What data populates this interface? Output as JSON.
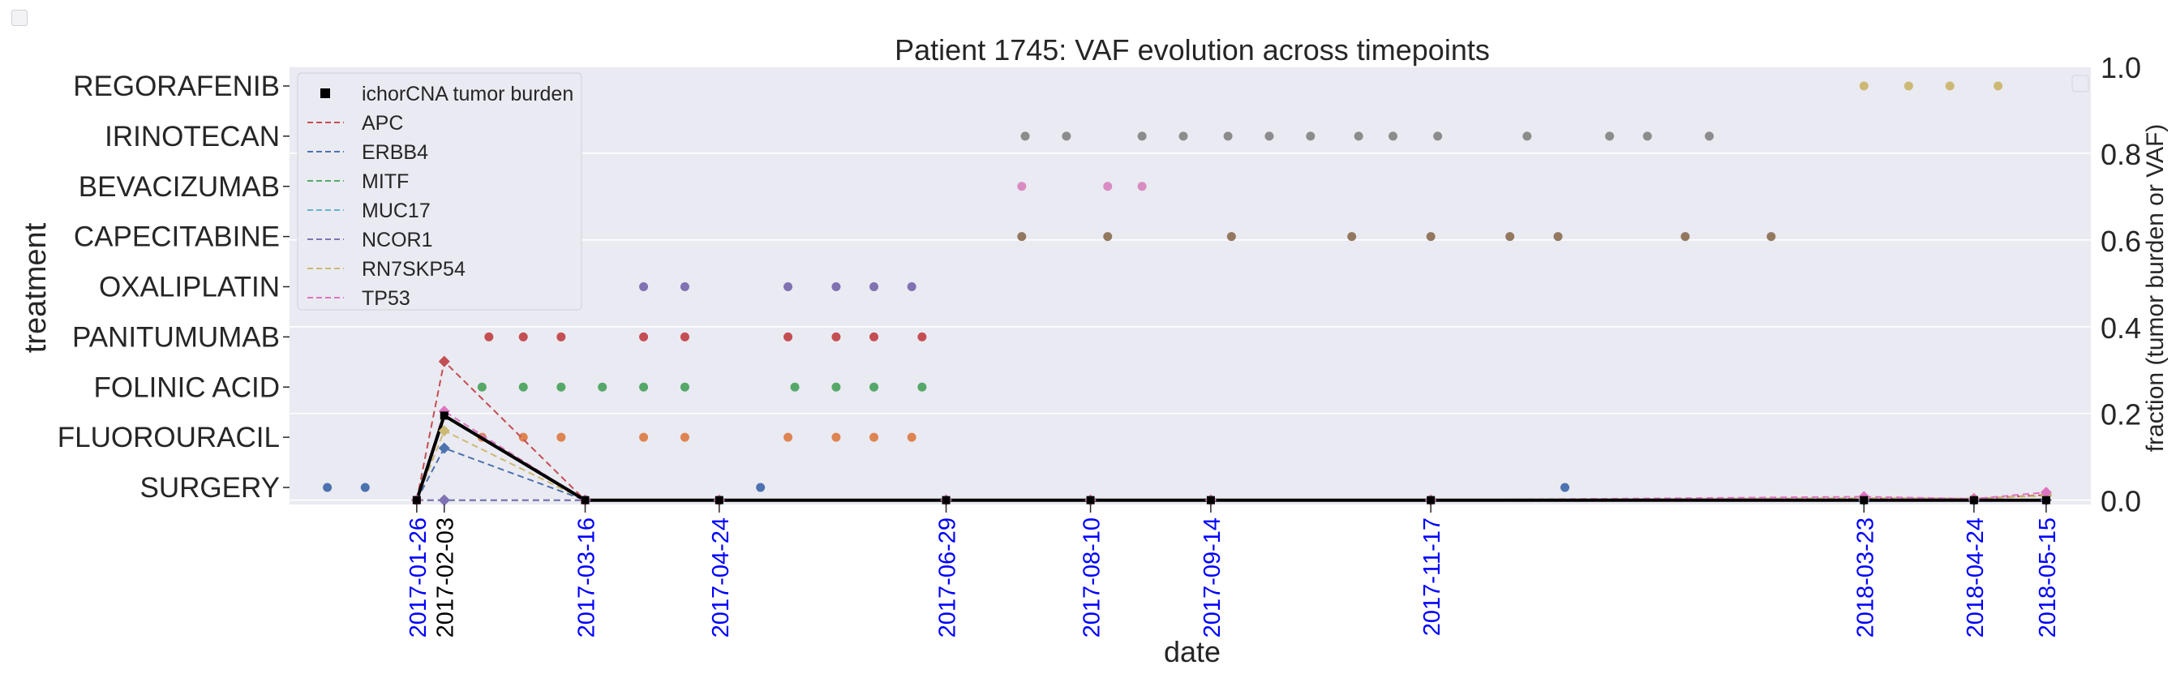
{
  "chart_data": {
    "type": "scatter",
    "title": "Patient 1745: VAF evolution across timepoints",
    "xlabel": "date",
    "ylabel_left": "treatment",
    "ylabel_right": "fraction (tumor burden or VAF)",
    "xlim": [
      "2016-12-20",
      "2018-05-28"
    ],
    "ylim_right": [
      -0.01,
      1.0
    ],
    "right_ticks": [
      "0.0",
      "0.2",
      "0.4",
      "0.6",
      "0.8",
      "1.0"
    ],
    "grid": true,
    "legend_position": "upper left",
    "treatments": [
      "SURGERY",
      "FLUOROURACIL",
      "FOLINIC ACID",
      "PANITUMUMAB",
      "OXALIPLATIN",
      "CAPECITABINE",
      "BEVACIZUMAB",
      "IRINOTECAN",
      "REGORAFENIB"
    ],
    "sample_dates": [
      {
        "label": "2017-01-26",
        "color": "#0000ff"
      },
      {
        "label": "2017-02-03",
        "color": "#000000"
      },
      {
        "label": "2017-03-16",
        "color": "#0000ff"
      },
      {
        "label": "2017-04-24",
        "color": "#0000ff"
      },
      {
        "label": "2017-06-29",
        "color": "#0000ff"
      },
      {
        "label": "2017-08-10",
        "color": "#0000ff"
      },
      {
        "label": "2017-09-14",
        "color": "#0000ff"
      },
      {
        "label": "2017-11-17",
        "color": "#0000ff"
      },
      {
        "label": "2018-03-23",
        "color": "#0000ff"
      },
      {
        "label": "2018-04-24",
        "color": "#0000ff"
      },
      {
        "label": "2018-05-15",
        "color": "#0000ff"
      }
    ],
    "treatment_events": [
      {
        "treatment": "SURGERY",
        "color": "#4c72b0",
        "dates": [
          "2016-12-31",
          "2017-01-11",
          "2017-05-06",
          "2017-12-26"
        ]
      },
      {
        "treatment": "FLUOROURACIL",
        "color": "#dd8452",
        "dates": [
          "2017-02-14",
          "2017-02-26",
          "2017-03-09",
          "2017-04-02",
          "2017-04-14",
          "2017-05-14",
          "2017-05-28",
          "2017-06-08",
          "2017-06-19"
        ]
      },
      {
        "treatment": "FOLINIC ACID",
        "color": "#55a868",
        "dates": [
          "2017-02-14",
          "2017-02-26",
          "2017-03-09",
          "2017-03-21",
          "2017-04-02",
          "2017-04-14",
          "2017-05-16",
          "2017-05-28",
          "2017-06-08",
          "2017-06-22"
        ]
      },
      {
        "treatment": "PANITUMUMAB",
        "color": "#c44e52",
        "dates": [
          "2017-02-16",
          "2017-02-26",
          "2017-03-09",
          "2017-04-02",
          "2017-04-14",
          "2017-05-14",
          "2017-05-28",
          "2017-06-08",
          "2017-06-22"
        ]
      },
      {
        "treatment": "OXALIPLATIN",
        "color": "#8172b3",
        "dates": [
          "2017-02-26",
          "2017-03-09",
          "2017-04-02",
          "2017-04-14",
          "2017-05-14",
          "2017-05-28",
          "2017-06-08",
          "2017-06-19"
        ]
      },
      {
        "treatment": "OXALIPLATIN",
        "color": "#cfcfe0",
        "dates": [
          "2017-02-14"
        ]
      },
      {
        "treatment": "CAPECITABINE",
        "color": "#937860",
        "dates": [
          "2017-07-21",
          "2017-08-15",
          "2017-09-20",
          "2017-10-25",
          "2017-11-17",
          "2017-12-10",
          "2017-12-24",
          "2018-01-30",
          "2018-02-24"
        ]
      },
      {
        "treatment": "BEVACIZUMAB",
        "color": "#da8bc3",
        "dates": [
          "2017-07-21",
          "2017-08-15",
          "2017-08-25"
        ]
      },
      {
        "treatment": "IRINOTECAN",
        "color": "#8c8c8c",
        "dates": [
          "2017-07-22",
          "2017-08-03",
          "2017-08-25",
          "2017-09-06",
          "2017-09-19",
          "2017-10-01",
          "2017-10-13",
          "2017-10-27",
          "2017-11-06",
          "2017-11-19",
          "2017-12-15",
          "2018-01-08",
          "2018-01-19",
          "2018-02-06"
        ]
      },
      {
        "treatment": "REGORAFENIB",
        "color": "#ccb974",
        "dates": [
          "2018-03-23",
          "2018-04-05",
          "2018-04-17",
          "2018-05-01"
        ]
      }
    ],
    "series": [
      {
        "name": "ichorCNA tumor burden",
        "color": "#000000",
        "dash": false,
        "marker": "square",
        "values": [
          0.0,
          0.195,
          0.0,
          0.0,
          0.0,
          0.0,
          0.0,
          0.0,
          0.0,
          0.0,
          0.0
        ]
      },
      {
        "name": "APC",
        "color": "#c44e52",
        "dash": true,
        "marker": "diamond",
        "values": [
          0.0,
          0.32,
          0.0,
          0.0,
          0.0,
          0.0,
          0.0,
          0.0,
          0.003,
          0.003,
          0.012
        ]
      },
      {
        "name": "ERBB4",
        "color": "#4c72b0",
        "dash": true,
        "marker": "diamond",
        "values": [
          0.0,
          0.12,
          0.0,
          0.0,
          0.0,
          0.0,
          0.0,
          0.0,
          0.0,
          0.0,
          0.0
        ]
      },
      {
        "name": "MITF",
        "color": "#55a868",
        "dash": true,
        "marker": "diamond",
        "values": [
          0.0,
          0.0,
          0.0,
          0.0,
          0.0,
          0.0,
          0.0,
          0.0,
          0.0,
          0.0,
          0.0
        ]
      },
      {
        "name": "MUC17",
        "color": "#64b5cd",
        "dash": true,
        "marker": "diamond",
        "values": [
          0.0,
          0.0,
          0.0,
          0.0,
          0.0,
          0.0,
          0.0,
          0.0,
          0.0,
          0.0,
          0.0
        ]
      },
      {
        "name": "NCOR1",
        "color": "#8172b3",
        "dash": true,
        "marker": "diamond",
        "values": [
          0.0,
          0.0,
          0.0,
          0.0,
          0.0,
          0.0,
          0.0,
          0.0,
          0.0,
          0.0,
          0.0
        ]
      },
      {
        "name": "RN7SKP54",
        "color": "#ccb974",
        "dash": true,
        "marker": "diamond",
        "values": [
          0.0,
          0.16,
          0.0,
          0.0,
          0.0,
          0.0,
          0.0,
          0.0,
          0.005,
          0.004,
          0.01
        ]
      },
      {
        "name": "TP53",
        "color": "#dd74c0",
        "dash": true,
        "marker": "diamond",
        "values": [
          0.0,
          0.205,
          0.0,
          0.0,
          0.0,
          0.0,
          0.0,
          0.0,
          0.008,
          0.003,
          0.018
        ]
      }
    ]
  }
}
